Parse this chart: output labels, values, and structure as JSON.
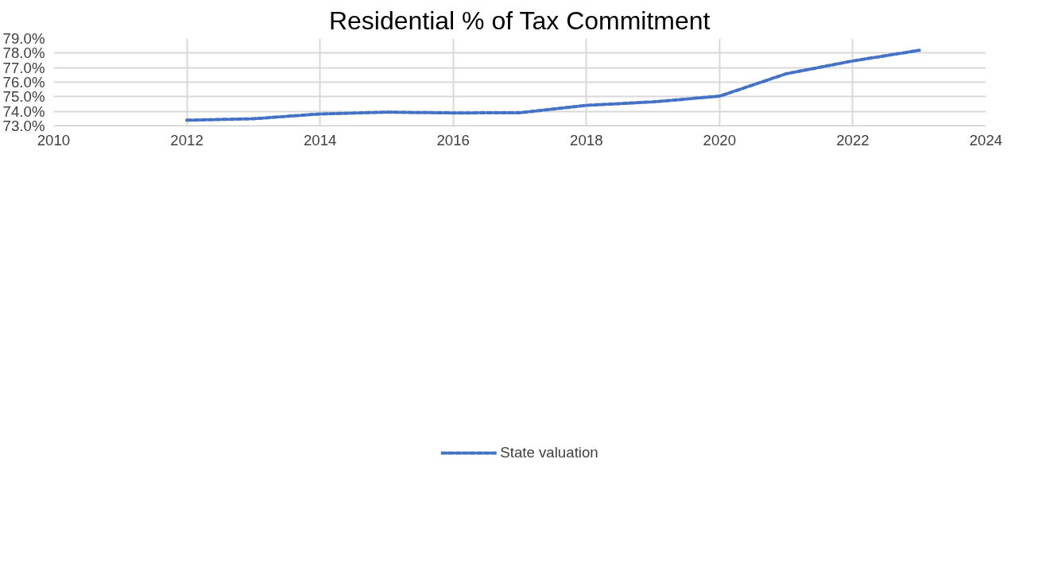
{
  "chart_data": {
    "type": "line",
    "title": "Residential % of Tax Commitment",
    "x": [
      2012,
      2013,
      2014,
      2015,
      2016,
      2017,
      2018,
      2019,
      2020,
      2021,
      2022,
      2023
    ],
    "series": [
      {
        "name": "State valuation",
        "color": "#4472c4",
        "values": [
          73.39,
          73.49,
          73.82,
          73.94,
          73.89,
          73.9,
          74.41,
          74.65,
          75.04,
          76.58,
          77.46,
          78.19
        ]
      }
    ],
    "xlim": [
      2010,
      2024
    ],
    "xticks": [
      2010,
      2012,
      2014,
      2016,
      2018,
      2020,
      2022,
      2024
    ],
    "ylim": [
      73,
      79
    ],
    "yticks": [
      {
        "value": 73,
        "label": "73.0%"
      },
      {
        "value": 74,
        "label": "74.0%"
      },
      {
        "value": 75,
        "label": "75.0%"
      },
      {
        "value": 76,
        "label": "76.0%"
      },
      {
        "value": 77,
        "label": "77.0%"
      },
      {
        "value": 78,
        "label": "78.0%"
      },
      {
        "value": 79,
        "label": "79.0%"
      }
    ],
    "grid": true,
    "legend": "bottom",
    "line_style": "dashed"
  }
}
